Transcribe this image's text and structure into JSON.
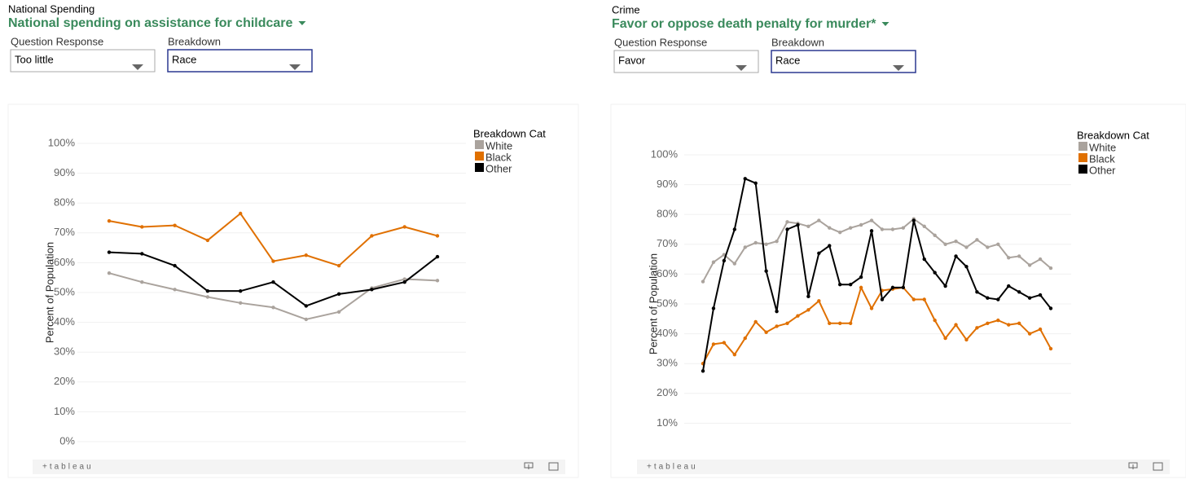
{
  "panels": [
    {
      "section": "National Spending",
      "title": "National spending on assistance for childcare",
      "controls": [
        {
          "label": "Question Response",
          "value": "Too little"
        },
        {
          "label": "Breakdown",
          "value": "Race"
        }
      ],
      "footer": "+tableau"
    },
    {
      "section": "Crime",
      "title": "Favor or oppose death penalty for murder*",
      "controls": [
        {
          "label": "Question Response",
          "value": "Favor"
        },
        {
          "label": "Breakdown",
          "value": "Race"
        }
      ],
      "footer": "+tableau"
    }
  ],
  "chart_data": [
    {
      "type": "line",
      "y_label": "Percent of Population",
      "legend_title": "Breakdown Cat",
      "categories": [
        null,
        null,
        null,
        null,
        null,
        null,
        null,
        null,
        null,
        null,
        null
      ],
      "series": [
        {
          "name": "White",
          "color": "#aaa39d",
          "values": [
            56.5,
            53.5,
            51,
            48.5,
            46.5,
            45,
            41,
            43.5,
            51.5,
            54.5,
            54
          ]
        },
        {
          "name": "Black",
          "color": "#e07000",
          "values": [
            74,
            72,
            72.5,
            67.5,
            76.5,
            60.5,
            62.5,
            59,
            69,
            72,
            69
          ]
        },
        {
          "name": "Other",
          "color": "#000000",
          "values": [
            63.5,
            63,
            59,
            50.5,
            50.5,
            53.5,
            45.5,
            49.5,
            51,
            53.5,
            62
          ]
        }
      ],
      "ylim": [
        0,
        100
      ],
      "yticks": [
        {
          "value": 0,
          "label": "0%"
        },
        {
          "value": 10,
          "label": "10%"
        },
        {
          "value": 20,
          "label": "20%"
        },
        {
          "value": 30,
          "label": "30%"
        },
        {
          "value": 40,
          "label": "40%"
        },
        {
          "value": 50,
          "label": "50%"
        },
        {
          "value": 60,
          "label": "60%"
        },
        {
          "value": 70,
          "label": "70%"
        },
        {
          "value": 80,
          "label": "80%"
        },
        {
          "value": 90,
          "label": "90%"
        },
        {
          "value": 100,
          "label": "100%"
        }
      ],
      "grid": true
    },
    {
      "type": "line",
      "y_label": "Percent of Population",
      "legend_title": "Breakdown Cat",
      "categories": [
        null,
        null,
        null,
        null,
        null,
        null,
        null,
        null,
        null,
        null,
        null,
        null,
        null,
        null,
        null,
        null,
        null,
        null,
        null,
        null,
        null,
        null,
        null,
        null,
        null,
        null,
        null,
        null,
        null,
        null,
        null,
        null,
        null,
        null
      ],
      "series": [
        {
          "name": "White",
          "color": "#aaa39d",
          "values": [
            57.5,
            64,
            66.5,
            63.5,
            69,
            70.5,
            70,
            71,
            77.5,
            77,
            76,
            78,
            75.5,
            74,
            75.5,
            76.5,
            78,
            75,
            75,
            75.5,
            78.5,
            76,
            73,
            70,
            71,
            69,
            71.5,
            69,
            70,
            65.5,
            66,
            63,
            65,
            62
          ]
        },
        {
          "name": "Black",
          "color": "#e07000",
          "values": [
            30,
            36.5,
            37,
            33,
            38.5,
            44,
            40.5,
            42.5,
            43.5,
            46,
            48,
            51,
            43.5,
            43.5,
            43.5,
            55.5,
            48.5,
            54.5,
            55,
            55.5,
            51.5,
            51.5,
            44.5,
            38.5,
            43,
            38,
            42,
            43.5,
            44.5,
            43,
            43.5,
            40,
            41.5,
            35
          ]
        },
        {
          "name": "Other",
          "color": "#000000",
          "values": [
            27.5,
            48.5,
            64.5,
            75,
            92,
            90.5,
            61,
            47.5,
            75,
            76.5,
            52.5,
            67,
            69.5,
            56.5,
            56.5,
            59,
            74.5,
            51.5,
            55.5,
            55.5,
            78,
            65,
            60.5,
            56,
            66,
            62.5,
            54,
            52,
            51.5,
            56,
            54,
            52,
            53,
            48.5
          ]
        }
      ],
      "ylim": [
        0,
        100
      ],
      "yticks": [
        {
          "value": 10,
          "label": "10%"
        },
        {
          "value": 20,
          "label": "20%"
        },
        {
          "value": 30,
          "label": "30%"
        },
        {
          "value": 40,
          "label": "40%"
        },
        {
          "value": 50,
          "label": "50%"
        },
        {
          "value": 60,
          "label": "60%"
        },
        {
          "value": 70,
          "label": "70%"
        },
        {
          "value": 80,
          "label": "80%"
        },
        {
          "value": 90,
          "label": "90%"
        },
        {
          "value": 100,
          "label": "100%"
        }
      ],
      "grid": true
    }
  ]
}
